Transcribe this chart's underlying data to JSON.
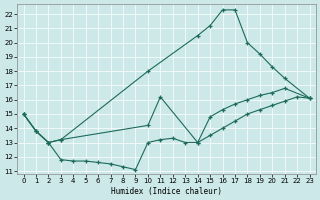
{
  "xlabel": "Humidex (Indice chaleur)",
  "xlim": [
    -0.5,
    23.5
  ],
  "ylim": [
    10.8,
    22.7
  ],
  "yticks": [
    11,
    12,
    13,
    14,
    15,
    16,
    17,
    18,
    19,
    20,
    21,
    22
  ],
  "xticks": [
    0,
    1,
    2,
    3,
    4,
    5,
    6,
    7,
    8,
    9,
    10,
    11,
    12,
    13,
    14,
    15,
    16,
    17,
    18,
    19,
    20,
    21,
    22,
    23
  ],
  "line_color": "#1c6b5c",
  "bg_color": "#cce8e8",
  "grid_color": "#b8d8d8",
  "line1_x": [
    0,
    1,
    2,
    3,
    10,
    14,
    15,
    16,
    17,
    18,
    19,
    20,
    21,
    23
  ],
  "line1_y": [
    15.0,
    13.8,
    13.0,
    13.2,
    18.0,
    20.5,
    21.2,
    22.3,
    22.3,
    20.0,
    19.2,
    18.3,
    17.5,
    16.1
  ],
  "line2_x": [
    0,
    1,
    2,
    3,
    10,
    11,
    14,
    15,
    16,
    17,
    18,
    19,
    20,
    21,
    23
  ],
  "line2_y": [
    15.0,
    13.8,
    13.0,
    13.2,
    14.2,
    16.2,
    13.0,
    14.8,
    15.3,
    15.7,
    16.0,
    16.3,
    16.5,
    16.8,
    16.1
  ],
  "line3_x": [
    0,
    1,
    2,
    3,
    4,
    5,
    6,
    7,
    8,
    9,
    10,
    11,
    12,
    13,
    14,
    15,
    16,
    17,
    18,
    19,
    20,
    21,
    22,
    23
  ],
  "line3_y": [
    15.0,
    13.8,
    13.0,
    11.8,
    11.7,
    11.7,
    11.6,
    11.5,
    11.3,
    11.1,
    13.0,
    13.2,
    13.3,
    13.0,
    13.0,
    13.5,
    14.0,
    14.5,
    15.0,
    15.3,
    15.6,
    15.9,
    16.2,
    16.1
  ]
}
